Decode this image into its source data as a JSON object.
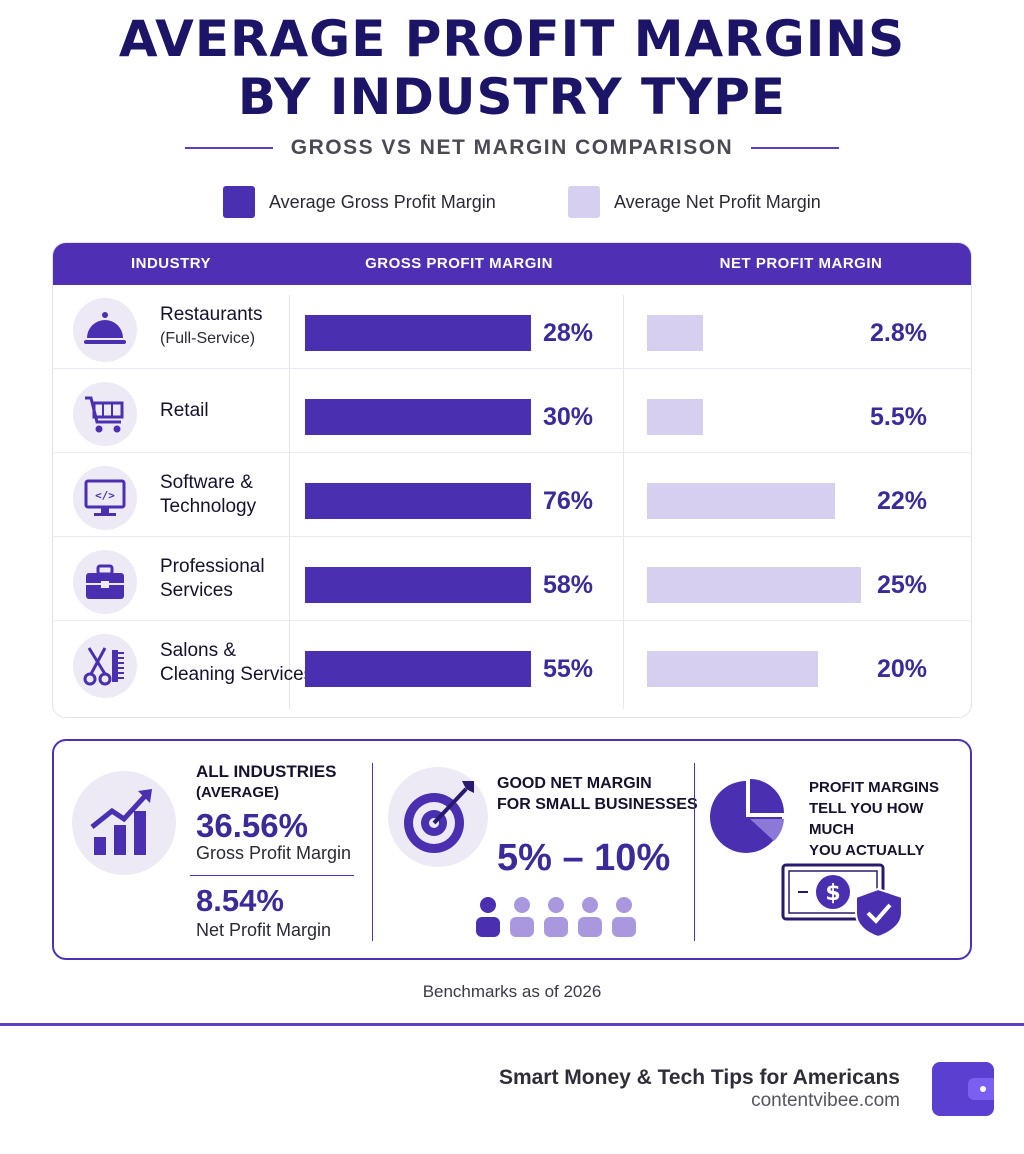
{
  "title_line1": "AVERAGE PROFIT MARGINS",
  "title_line2": "BY INDUSTRY TYPE",
  "subtitle": "GROSS VS NET MARGIN COMPARISON",
  "colors": {
    "gross": "#4a2fb0",
    "net": "#d6cff0",
    "header": "#4f30b4"
  },
  "chart_data": {
    "type": "bar",
    "title": "AVERAGE PROFIT MARGINS BY INDUSTRY TYPE",
    "subtitle": "GROSS VS NET MARGIN COMPARISON",
    "columns": [
      "INDUSTRY",
      "GROSS PROFIT MARGIN",
      "NET PROFIT MARGIN"
    ],
    "legend": [
      "Average Gross Profit Margin",
      "Average Net Profit Margin"
    ],
    "legend_position": "top",
    "rows": [
      {
        "name": "Restaurants",
        "sub": "(Full-Service)",
        "icon": "cloche-icon",
        "gross_label": "28%",
        "net_label": "2.8%",
        "gross": 28,
        "net": 2.8
      },
      {
        "name": "Retail",
        "sub": "",
        "icon": "shopping-cart-icon",
        "gross_label": "30%",
        "net_label": "5.5%",
        "gross": 30,
        "net": 5.5
      },
      {
        "name": "Software &",
        "sub": "Technology",
        "icon": "monitor-code-icon",
        "gross_label": "76%",
        "net_label": "22%",
        "gross": 76,
        "net": 22
      },
      {
        "name": "Professional",
        "sub": "Services",
        "icon": "briefcase-icon",
        "gross_label": "58%",
        "net_label": "25%",
        "gross": 58,
        "net": 25
      },
      {
        "name": "Salons &",
        "sub": "Cleaning Services",
        "icon": "scissors-comb-icon",
        "gross_label": "55%",
        "net_label": "20%",
        "gross": 55,
        "net": 20
      }
    ],
    "series": [
      {
        "name": "Average Gross Profit Margin",
        "values": [
          28,
          30,
          76,
          58,
          55
        ]
      },
      {
        "name": "Average Net Profit Margin",
        "values": [
          2.8,
          5.5,
          22,
          25,
          20
        ]
      }
    ]
  },
  "summary": {
    "avg_head_1": "ALL INDUSTRIES",
    "avg_head_2": "(AVERAGE)",
    "avg_gross": "36.56%",
    "avg_gross_label": "Gross Profit Margin",
    "avg_net": "8.54%",
    "avg_net_label": "Net Profit Margin",
    "good_head_1": "GOOD NET MARGIN",
    "good_head_2": "FOR SMALL BUSINESSES",
    "good_range": "5% – 10%",
    "keep_1": "PROFIT MARGINS",
    "keep_2": "TELL YOU HOW MUCH",
    "keep_3": "YOU ACTUALLY KEEP."
  },
  "footnote": "Benchmarks as of 2026",
  "brand": {
    "tagline": "Smart Money & Tech Tips for Americans",
    "url": "contentvibee.com"
  }
}
